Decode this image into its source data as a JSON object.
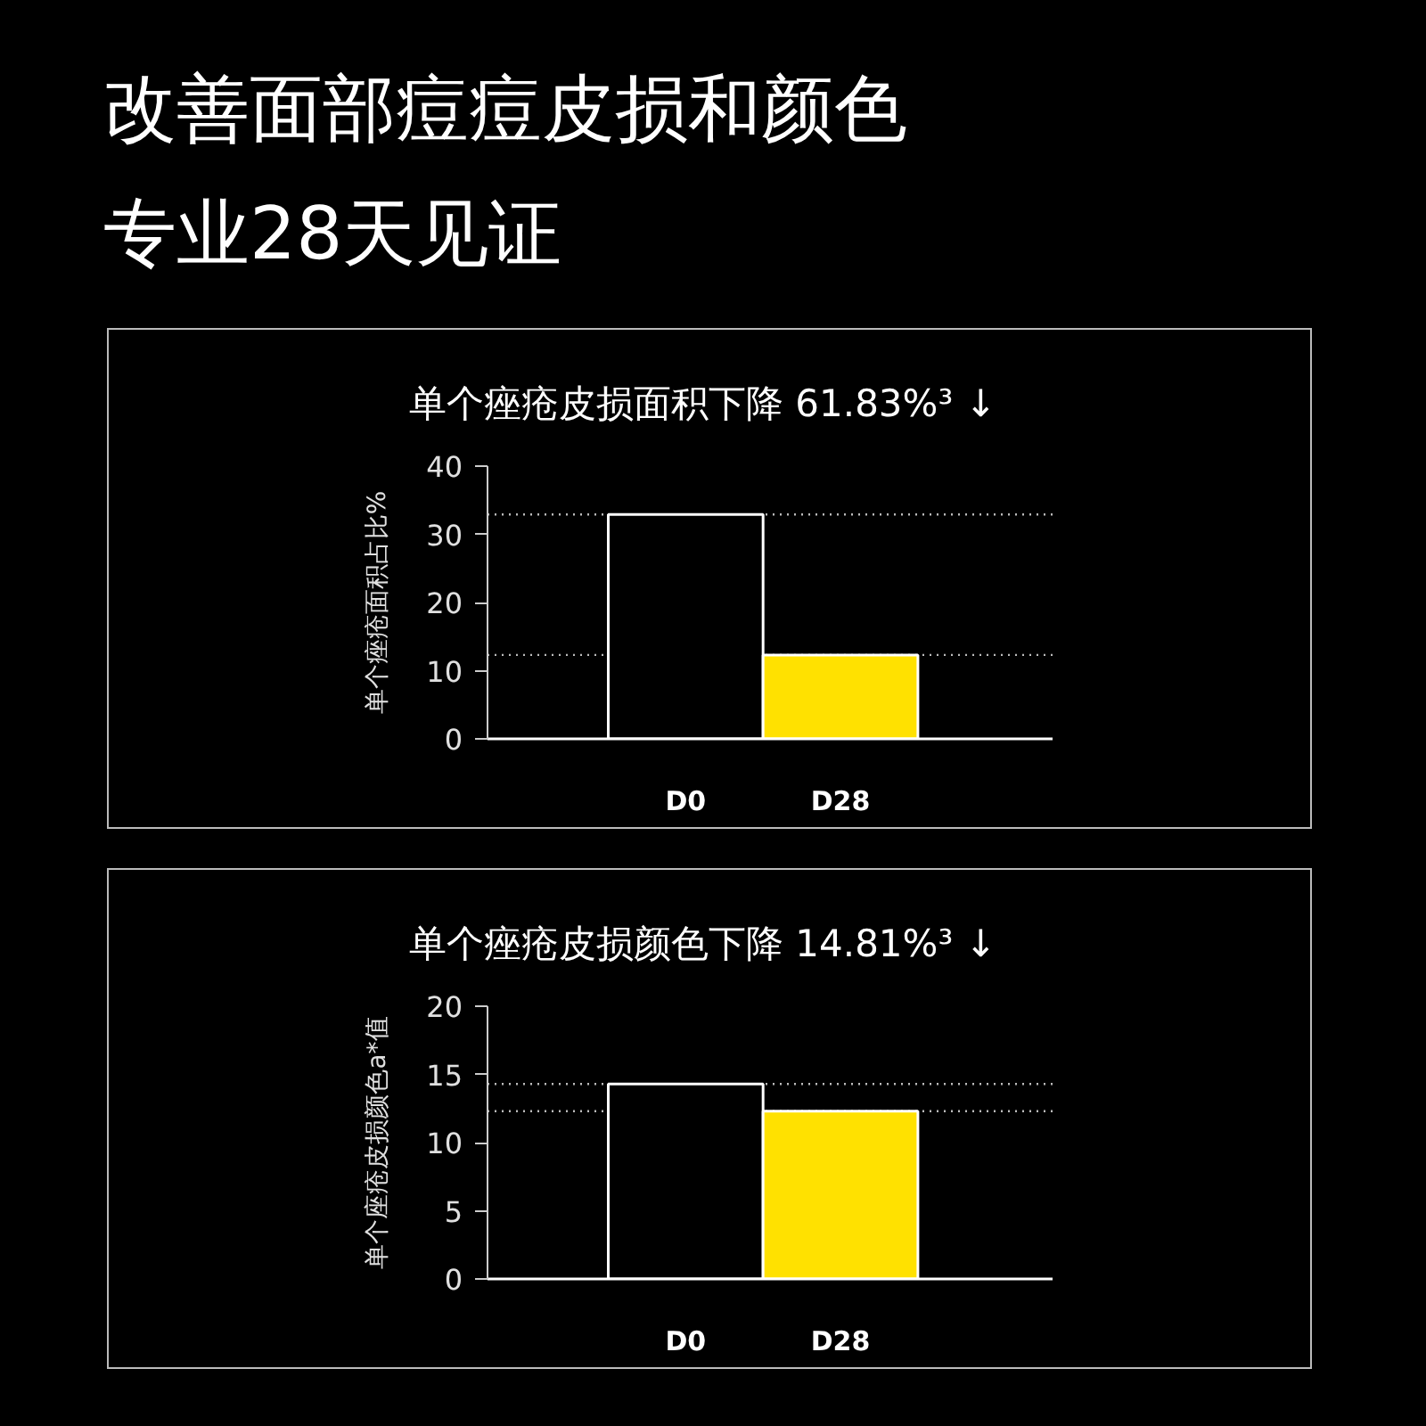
{
  "chart_data": [
    {
      "type": "other",
      "title": "改善面部痘痘皮损和颜色",
      "subtitle": "专业28天见证"
    },
    {
      "type": "bar",
      "title": "单个痤疮皮损面积下降 61.83%³ ↓",
      "ylabel": "单个痤疮面积占比%",
      "categories": [
        "D0",
        "D28"
      ],
      "values": [
        32.9,
        12.3
      ],
      "colors": [
        "#000000",
        "#ffe100"
      ],
      "ylim": [
        0,
        40
      ],
      "yticks": [
        0,
        10,
        20,
        30,
        40
      ],
      "ref_lines": [
        {
          "axis": "y",
          "value": 32.9,
          "color": "#bbbbbb",
          "line_style": "dotted"
        },
        {
          "axis": "y",
          "value": 12.3,
          "color": "#bbbbbb",
          "line_style": "dotted"
        }
      ]
    },
    {
      "type": "bar",
      "title": "单个痤疮皮损颜色下降 14.81%³ ↓",
      "ylabel": "单个座疮皮损颜色a*值",
      "categories": [
        "D0",
        "D28"
      ],
      "values": [
        14.3,
        12.3
      ],
      "colors": [
        "#000000",
        "#ffe100"
      ],
      "ylim": [
        0,
        20
      ],
      "yticks": [
        0,
        5,
        10,
        15,
        20
      ],
      "ref_lines": [
        {
          "axis": "y",
          "value": 14.3,
          "color": "#bbbbbb",
          "line_style": "dotted"
        },
        {
          "axis": "y",
          "value": 12.3,
          "color": "#bbbbbb",
          "line_style": "dotted"
        }
      ]
    }
  ]
}
